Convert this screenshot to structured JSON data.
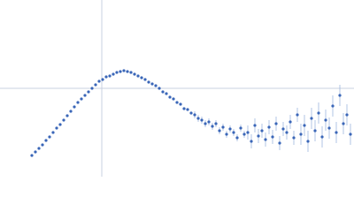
{
  "chart_data": {
    "type": "scatter",
    "color": "#3a66b8",
    "error_color": "#9fb6de",
    "ref_line_color": "#c8d0e0",
    "xlim": [
      0,
      400
    ],
    "ylim": [
      0,
      200
    ],
    "vline": 115,
    "hline": 100,
    "x": [
      36,
      40,
      44,
      48,
      52,
      56,
      60,
      64,
      68,
      72,
      76,
      80,
      84,
      88,
      92,
      96,
      100,
      104,
      108,
      112,
      116,
      120,
      124,
      128,
      132,
      136,
      140,
      144,
      148,
      152,
      156,
      160,
      164,
      168,
      172,
      176,
      180,
      184,
      188,
      192,
      196,
      200,
      204,
      208,
      212,
      216,
      220,
      224,
      228,
      232,
      236,
      240,
      244,
      248,
      252,
      256,
      260,
      264,
      268,
      272,
      276,
      280,
      284,
      288,
      292,
      296,
      300,
      304,
      308,
      312,
      316,
      320,
      324,
      328,
      332,
      336,
      340,
      344,
      348,
      352,
      356,
      360,
      364,
      368,
      372,
      376,
      380,
      384,
      388,
      392,
      396
    ],
    "values": [
      24,
      28,
      32,
      36,
      41,
      45,
      50,
      55,
      59,
      64,
      69,
      74,
      79,
      84,
      88,
      92,
      96,
      100,
      104,
      108,
      110,
      113,
      114,
      116,
      118,
      119,
      120,
      119,
      118,
      116,
      114,
      112,
      110,
      107,
      105,
      103,
      100,
      96,
      94,
      90,
      88,
      84,
      82,
      77,
      76,
      72,
      70,
      66,
      64,
      60,
      62,
      57,
      60,
      52,
      56,
      48,
      54,
      50,
      44,
      55,
      48,
      50,
      40,
      58,
      46,
      52,
      42,
      56,
      45,
      60,
      38,
      54,
      50,
      62,
      44,
      70,
      48,
      58,
      40,
      66,
      52,
      72,
      45,
      64,
      55,
      80,
      50,
      92,
      60,
      70,
      48
    ],
    "errors": [
      1,
      1,
      1,
      1,
      1,
      1,
      1,
      1,
      1,
      1,
      1,
      1,
      1,
      1,
      1,
      1,
      1,
      1,
      1,
      1,
      1,
      1,
      1,
      1,
      1,
      1,
      1,
      1,
      1,
      1,
      1,
      1,
      1,
      1,
      1,
      1,
      1,
      1,
      1,
      1,
      1,
      1,
      1,
      1,
      1,
      1,
      4,
      4,
      4,
      4,
      4,
      4,
      4,
      4,
      4,
      4,
      4,
      4,
      4,
      4,
      4,
      8,
      8,
      8,
      8,
      8,
      8,
      8,
      8,
      8,
      8,
      8,
      8,
      8,
      8,
      8,
      12,
      12,
      12,
      12,
      12,
      12,
      12,
      12,
      12,
      12,
      12,
      12,
      12,
      12,
      12
    ]
  }
}
